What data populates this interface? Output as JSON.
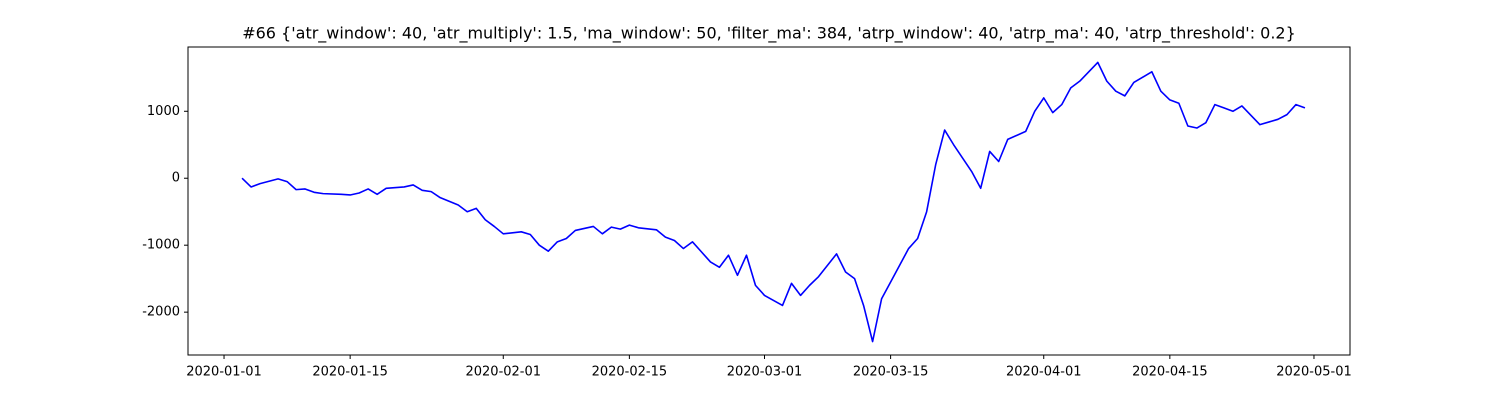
{
  "chart_data": {
    "type": "line",
    "title": "#66 {'atr_window': 40, 'atr_multiply': 1.5, 'ma_window': 50, 'filter_ma': 384, 'atrp_window': 40, 'atrp_ma': 40, 'atrp_threshold': 0.2}",
    "x": [
      "2020-01-03",
      "2020-01-04",
      "2020-01-05",
      "2020-01-07",
      "2020-01-08",
      "2020-01-09",
      "2020-01-10",
      "2020-01-11",
      "2020-01-12",
      "2020-01-14",
      "2020-01-15",
      "2020-01-16",
      "2020-01-17",
      "2020-01-18",
      "2020-01-19",
      "2020-01-21",
      "2020-01-22",
      "2020-01-23",
      "2020-01-24",
      "2020-01-25",
      "2020-01-27",
      "2020-01-28",
      "2020-01-29",
      "2020-01-30",
      "2020-01-31",
      "2020-02-01",
      "2020-02-03",
      "2020-02-04",
      "2020-02-05",
      "2020-02-06",
      "2020-02-07",
      "2020-02-08",
      "2020-02-09",
      "2020-02-11",
      "2020-02-12",
      "2020-02-13",
      "2020-02-14",
      "2020-02-15",
      "2020-02-16",
      "2020-02-18",
      "2020-02-19",
      "2020-02-20",
      "2020-02-21",
      "2020-02-22",
      "2020-02-23",
      "2020-02-24",
      "2020-02-25",
      "2020-02-26",
      "2020-02-27",
      "2020-02-28",
      "2020-02-29",
      "2020-03-01",
      "2020-03-03",
      "2020-03-04",
      "2020-03-05",
      "2020-03-06",
      "2020-03-07",
      "2020-03-09",
      "2020-03-10",
      "2020-03-11",
      "2020-03-12",
      "2020-03-13",
      "2020-03-14",
      "2020-03-17",
      "2020-03-18",
      "2020-03-19",
      "2020-03-20",
      "2020-03-21",
      "2020-03-22",
      "2020-03-23",
      "2020-03-24",
      "2020-03-25",
      "2020-03-26",
      "2020-03-27",
      "2020-03-28",
      "2020-03-30",
      "2020-03-31",
      "2020-04-01",
      "2020-04-02",
      "2020-04-03",
      "2020-04-04",
      "2020-04-05",
      "2020-04-07",
      "2020-04-08",
      "2020-04-09",
      "2020-04-10",
      "2020-04-11",
      "2020-04-13",
      "2020-04-14",
      "2020-04-15",
      "2020-04-16",
      "2020-04-17",
      "2020-04-18",
      "2020-04-19",
      "2020-04-20",
      "2020-04-21",
      "2020-04-22",
      "2020-04-23",
      "2020-04-25",
      "2020-04-27",
      "2020-04-28",
      "2020-04-29",
      "2020-04-30"
    ],
    "series": [
      {
        "color": "#0000ff",
        "values": [
          0,
          -130,
          -80,
          -10,
          -50,
          -170,
          -160,
          -210,
          -230,
          -240,
          -250,
          -220,
          -160,
          -240,
          -150,
          -130,
          -100,
          -180,
          -200,
          -290,
          -400,
          -500,
          -450,
          -620,
          -720,
          -830,
          -800,
          -840,
          -1000,
          -1090,
          -950,
          -900,
          -780,
          -720,
          -830,
          -730,
          -760,
          -700,
          -740,
          -770,
          -880,
          -930,
          -1050,
          -950,
          -1100,
          -1250,
          -1330,
          -1150,
          -1450,
          -1150,
          -1600,
          -1750,
          -1900,
          -1570,
          -1750,
          -1600,
          -1470,
          -1130,
          -1400,
          -1500,
          -1900,
          -2440,
          -1800,
          -1050,
          -900,
          -500,
          200,
          720,
          500,
          300,
          100,
          -150,
          400,
          250,
          580,
          700,
          1000,
          1200,
          980,
          1100,
          1350,
          1450,
          1730,
          1450,
          1300,
          1230,
          1430,
          1590,
          1300,
          1170,
          1120,
          780,
          750,
          830,
          1100,
          1050,
          1000,
          1080,
          800,
          880,
          950,
          1100,
          1050
        ]
      }
    ],
    "xlim": [
      "2019-12-28",
      "2020-05-05"
    ],
    "xticks": [
      "2020-01-01",
      "2020-01-15",
      "2020-02-01",
      "2020-02-15",
      "2020-03-01",
      "2020-03-15",
      "2020-04-01",
      "2020-04-15",
      "2020-05-01"
    ],
    "ylim": [
      -2640,
      1960
    ],
    "yticks": [
      -2000,
      -1000,
      0,
      1000
    ]
  }
}
